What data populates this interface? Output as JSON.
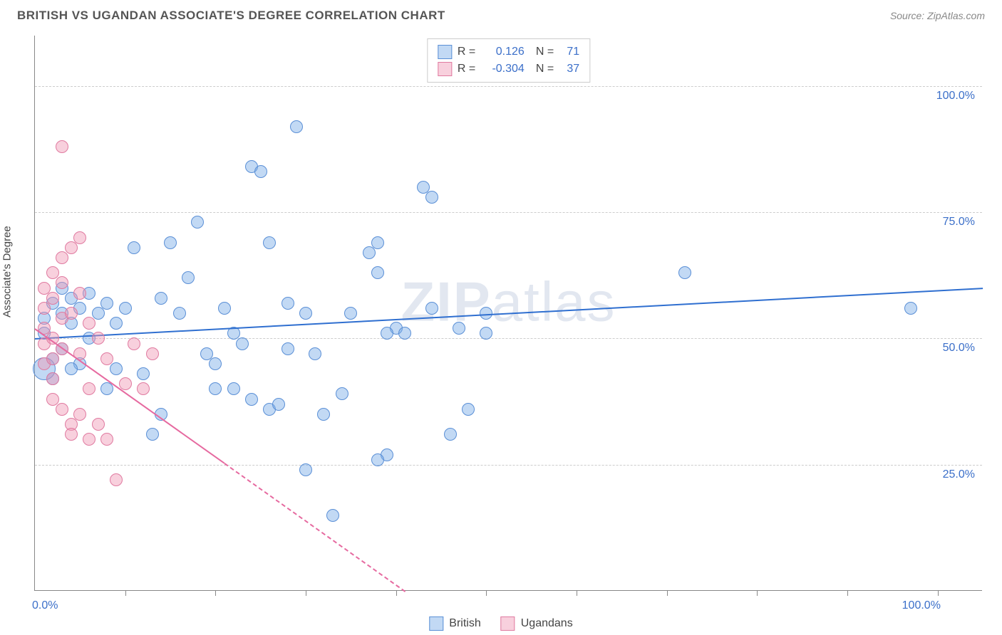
{
  "header": {
    "title": "BRITISH VS UGANDAN ASSOCIATE'S DEGREE CORRELATION CHART",
    "source_label": "Source: ZipAtlas.com"
  },
  "chart": {
    "type": "scatter",
    "yaxis_title": "Associate's Degree",
    "background_color": "#ffffff",
    "grid_color": "#cccccc",
    "axis_color": "#888888",
    "xlim": [
      0,
      105
    ],
    "ylim": [
      0,
      110
    ],
    "yticks": [
      {
        "v": 25,
        "label": "25.0%"
      },
      {
        "v": 50,
        "label": "50.0%"
      },
      {
        "v": 75,
        "label": "75.0%"
      },
      {
        "v": 100,
        "label": "100.0%"
      }
    ],
    "xticks_minor": [
      10,
      20,
      30,
      40,
      50,
      60,
      70,
      80,
      90,
      100
    ],
    "xtick_labels": [
      {
        "v": 0,
        "label": "0.0%"
      },
      {
        "v": 100,
        "label": "100.0%"
      }
    ],
    "watermark": "ZIPatlas",
    "series": [
      {
        "name": "British",
        "marker_fill": "rgba(120,170,230,0.45)",
        "marker_stroke": "#5a8fd6",
        "marker_radius": 9,
        "trend_color": "#2f6fd0",
        "trend": {
          "x1": 0,
          "y1": 50,
          "x2": 105,
          "y2": 60,
          "dash_after_x": null
        },
        "points": [
          [
            1,
            51
          ],
          [
            1,
            54
          ],
          [
            2,
            46
          ],
          [
            2,
            42
          ],
          [
            2,
            57
          ],
          [
            3,
            60
          ],
          [
            3,
            48
          ],
          [
            3,
            55
          ],
          [
            4,
            53
          ],
          [
            4,
            58
          ],
          [
            5,
            56
          ],
          [
            5,
            45
          ],
          [
            6,
            59
          ],
          [
            7,
            55
          ],
          [
            8,
            57
          ],
          [
            8,
            40
          ],
          [
            9,
            53
          ],
          [
            10,
            56
          ],
          [
            11,
            68
          ],
          [
            12,
            43
          ],
          [
            13,
            31
          ],
          [
            14,
            58
          ],
          [
            15,
            69
          ],
          [
            16,
            55
          ],
          [
            17,
            62
          ],
          [
            18,
            73
          ],
          [
            19,
            47
          ],
          [
            20,
            45
          ],
          [
            20,
            40
          ],
          [
            21,
            56
          ],
          [
            22,
            51
          ],
          [
            23,
            49
          ],
          [
            24,
            84
          ],
          [
            25,
            83
          ],
          [
            26,
            69
          ],
          [
            22,
            40
          ],
          [
            24,
            38
          ],
          [
            26,
            36
          ],
          [
            27,
            37
          ],
          [
            28,
            57
          ],
          [
            28,
            48
          ],
          [
            29,
            92
          ],
          [
            30,
            55
          ],
          [
            30,
            24
          ],
          [
            31,
            47
          ],
          [
            32,
            35
          ],
          [
            33,
            15
          ],
          [
            34,
            39
          ],
          [
            35,
            55
          ],
          [
            37,
            67
          ],
          [
            38,
            69
          ],
          [
            39,
            27
          ],
          [
            40,
            52
          ],
          [
            41,
            51
          ],
          [
            43,
            80
          ],
          [
            44,
            78
          ],
          [
            46,
            31
          ],
          [
            47,
            52
          ],
          [
            50,
            55
          ],
          [
            50,
            51
          ],
          [
            97,
            56
          ],
          [
            72,
            63
          ],
          [
            48,
            36
          ],
          [
            44,
            56
          ],
          [
            38,
            63
          ],
          [
            38,
            26
          ],
          [
            39,
            51
          ],
          [
            14,
            35
          ],
          [
            9,
            44
          ],
          [
            6,
            50
          ],
          [
            4,
            44
          ]
        ],
        "big_point": {
          "xy": [
            1,
            44
          ],
          "radius": 16
        }
      },
      {
        "name": "Ugandans",
        "marker_fill": "rgba(240,150,180,0.45)",
        "marker_stroke": "#e07aa0",
        "marker_radius": 9,
        "trend_color": "#e66aa0",
        "trend": {
          "x1": 0,
          "y1": 52,
          "x2": 41,
          "y2": 0,
          "dash_after_x": 21
        },
        "points": [
          [
            1,
            52
          ],
          [
            1,
            56
          ],
          [
            1,
            60
          ],
          [
            1,
            49
          ],
          [
            1,
            45
          ],
          [
            2,
            63
          ],
          [
            2,
            58
          ],
          [
            2,
            50
          ],
          [
            2,
            42
          ],
          [
            2,
            38
          ],
          [
            3,
            88
          ],
          [
            3,
            61
          ],
          [
            3,
            54
          ],
          [
            3,
            48
          ],
          [
            3,
            36
          ],
          [
            4,
            68
          ],
          [
            4,
            55
          ],
          [
            4,
            33
          ],
          [
            4,
            31
          ],
          [
            5,
            59
          ],
          [
            5,
            47
          ],
          [
            5,
            35
          ],
          [
            6,
            53
          ],
          [
            6,
            40
          ],
          [
            6,
            30
          ],
          [
            7,
            50
          ],
          [
            7,
            33
          ],
          [
            8,
            46
          ],
          [
            8,
            30
          ],
          [
            9,
            22
          ],
          [
            10,
            41
          ],
          [
            11,
            49
          ],
          [
            12,
            40
          ],
          [
            13,
            47
          ],
          [
            5,
            70
          ],
          [
            3,
            66
          ],
          [
            2,
            46
          ]
        ]
      }
    ],
    "legend_top": [
      {
        "swatch_fill": "rgba(120,170,230,0.45)",
        "swatch_stroke": "#5a8fd6",
        "r": "0.126",
        "n": "71"
      },
      {
        "swatch_fill": "rgba(240,150,180,0.45)",
        "swatch_stroke": "#e07aa0",
        "r": "-0.304",
        "n": "37"
      }
    ],
    "legend_bottom": [
      {
        "swatch_fill": "rgba(120,170,230,0.45)",
        "swatch_stroke": "#5a8fd6",
        "label": "British"
      },
      {
        "swatch_fill": "rgba(240,150,180,0.45)",
        "swatch_stroke": "#e07aa0",
        "label": "Ugandans"
      }
    ]
  }
}
